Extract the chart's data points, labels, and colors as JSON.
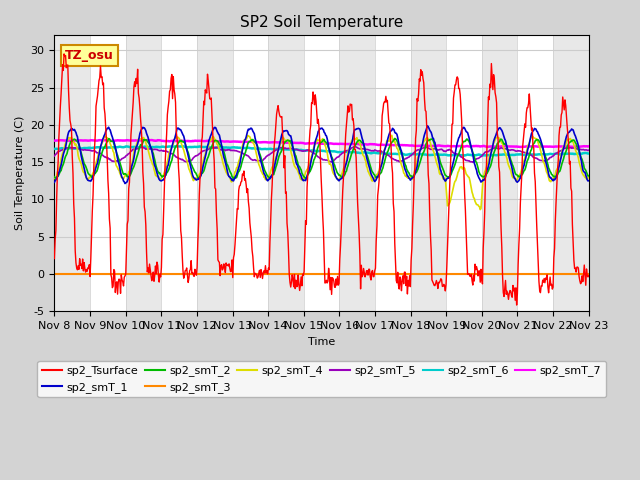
{
  "title": "SP2 Soil Temperature",
  "ylabel": "Soil Temperature (C)",
  "xlabel": "Time",
  "ylim": [
    -5,
    32
  ],
  "yticks": [
    -5,
    0,
    5,
    10,
    15,
    20,
    25,
    30
  ],
  "x_tick_labels": [
    "Nov 8",
    "Nov 9",
    "Nov 10",
    "Nov 11",
    "Nov 12",
    "Nov 13",
    "Nov 14",
    "Nov 15",
    "Nov 16",
    "Nov 17",
    "Nov 18",
    "Nov 19",
    "Nov 20",
    "Nov 21",
    "Nov 22",
    "Nov 23"
  ],
  "annotation_text": "TZ_osu",
  "annotation_color": "#cc0000",
  "annotation_bg": "#ffff99",
  "annotation_border": "#cc8800",
  "series_colors": {
    "sp2_Tsurface": "#ff0000",
    "sp2_smT_1": "#0000cc",
    "sp2_smT_2": "#00bb00",
    "sp2_smT_3": "#ff8800",
    "sp2_smT_4": "#dddd00",
    "sp2_smT_5": "#9900bb",
    "sp2_smT_6": "#00cccc",
    "sp2_smT_7": "#ff00ff"
  },
  "fig_bg_color": "#d3d3d3",
  "plot_bg_color": "#ffffff",
  "title_fontsize": 11,
  "axis_fontsize": 8,
  "tick_fontsize": 8
}
